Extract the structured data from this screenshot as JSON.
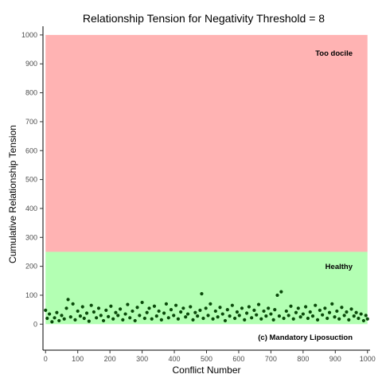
{
  "chart_data": {
    "type": "scatter",
    "title": "Relationship Tension for Negativity Threshold = 8",
    "xlabel": "Conflict Number",
    "ylabel": "Cumulative Relationship Tension",
    "xlim": [
      -8,
      1008
    ],
    "ylim": [
      -90,
      1030
    ],
    "x_ticks": [
      0,
      100,
      200,
      300,
      400,
      500,
      600,
      700,
      800,
      900,
      1000
    ],
    "y_ticks": [
      0,
      100,
      200,
      300,
      400,
      500,
      600,
      700,
      800,
      900,
      1000
    ],
    "grid": false,
    "bands": [
      {
        "label": "Too docile",
        "x_range": [
          0,
          1000
        ],
        "y_range": [
          250,
          1000
        ],
        "color": "#ffb3b3"
      },
      {
        "label": "Healthy",
        "x_range": [
          0,
          1000
        ],
        "y_range": [
          0,
          250
        ],
        "color": "#b3ffb3"
      }
    ],
    "point_color": "#0a4a0a",
    "points": [
      [
        0,
        48
      ],
      [
        5,
        20
      ],
      [
        12,
        35
      ],
      [
        20,
        8
      ],
      [
        28,
        22
      ],
      [
        35,
        40
      ],
      [
        42,
        12
      ],
      [
        50,
        30
      ],
      [
        58,
        18
      ],
      [
        65,
        55
      ],
      [
        70,
        85
      ],
      [
        78,
        25
      ],
      [
        85,
        70
      ],
      [
        92,
        15
      ],
      [
        100,
        45
      ],
      [
        108,
        28
      ],
      [
        115,
        60
      ],
      [
        120,
        20
      ],
      [
        128,
        38
      ],
      [
        135,
        10
      ],
      [
        142,
        65
      ],
      [
        150,
        42
      ],
      [
        158,
        22
      ],
      [
        165,
        55
      ],
      [
        172,
        30
      ],
      [
        180,
        12
      ],
      [
        188,
        48
      ],
      [
        195,
        26
      ],
      [
        203,
        62
      ],
      [
        210,
        18
      ],
      [
        218,
        40
      ],
      [
        225,
        30
      ],
      [
        232,
        52
      ],
      [
        240,
        15
      ],
      [
        248,
        35
      ],
      [
        255,
        68
      ],
      [
        262,
        22
      ],
      [
        270,
        45
      ],
      [
        278,
        12
      ],
      [
        285,
        58
      ],
      [
        292,
        30
      ],
      [
        300,
        75
      ],
      [
        308,
        20
      ],
      [
        315,
        40
      ],
      [
        322,
        55
      ],
      [
        330,
        18
      ],
      [
        338,
        62
      ],
      [
        345,
        28
      ],
      [
        352,
        45
      ],
      [
        360,
        15
      ],
      [
        368,
        38
      ],
      [
        375,
        70
      ],
      [
        382,
        22
      ],
      [
        390,
        50
      ],
      [
        398,
        30
      ],
      [
        405,
        65
      ],
      [
        412,
        18
      ],
      [
        420,
        42
      ],
      [
        428,
        55
      ],
      [
        435,
        25
      ],
      [
        442,
        35
      ],
      [
        450,
        60
      ],
      [
        458,
        15
      ],
      [
        465,
        40
      ],
      [
        472,
        28
      ],
      [
        480,
        48
      ],
      [
        485,
        105
      ],
      [
        490,
        20
      ],
      [
        498,
        55
      ],
      [
        505,
        30
      ],
      [
        512,
        70
      ],
      [
        520,
        18
      ],
      [
        528,
        45
      ],
      [
        535,
        25
      ],
      [
        542,
        58
      ],
      [
        550,
        35
      ],
      [
        558,
        12
      ],
      [
        565,
        50
      ],
      [
        572,
        28
      ],
      [
        580,
        65
      ],
      [
        588,
        20
      ],
      [
        595,
        42
      ],
      [
        602,
        30
      ],
      [
        610,
        55
      ],
      [
        618,
        15
      ],
      [
        625,
        38
      ],
      [
        632,
        60
      ],
      [
        640,
        22
      ],
      [
        648,
        48
      ],
      [
        655,
        32
      ],
      [
        662,
        68
      ],
      [
        670,
        18
      ],
      [
        678,
        45
      ],
      [
        685,
        28
      ],
      [
        692,
        55
      ],
      [
        700,
        35
      ],
      [
        708,
        15
      ],
      [
        712,
        50
      ],
      [
        720,
        100
      ],
      [
        726,
        28
      ],
      [
        732,
        112
      ],
      [
        740,
        20
      ],
      [
        748,
        45
      ],
      [
        755,
        30
      ],
      [
        762,
        62
      ],
      [
        770,
        18
      ],
      [
        778,
        40
      ],
      [
        785,
        55
      ],
      [
        792,
        25
      ],
      [
        800,
        35
      ],
      [
        808,
        60
      ],
      [
        815,
        20
      ],
      [
        822,
        42
      ],
      [
        830,
        28
      ],
      [
        838,
        65
      ],
      [
        845,
        15
      ],
      [
        852,
        48
      ],
      [
        860,
        32
      ],
      [
        868,
        55
      ],
      [
        875,
        20
      ],
      [
        882,
        40
      ],
      [
        890,
        70
      ],
      [
        898,
        25
      ],
      [
        905,
        45
      ],
      [
        912,
        18
      ],
      [
        920,
        58
      ],
      [
        928,
        30
      ],
      [
        935,
        42
      ],
      [
        942,
        15
      ],
      [
        950,
        52
      ],
      [
        958,
        28
      ],
      [
        965,
        40
      ],
      [
        972,
        20
      ],
      [
        980,
        35
      ],
      [
        988,
        12
      ],
      [
        995,
        30
      ],
      [
        1000,
        18
      ]
    ],
    "annotations": [
      "Too docile",
      "Healthy",
      "(c) Mandatory Liposuction"
    ]
  }
}
